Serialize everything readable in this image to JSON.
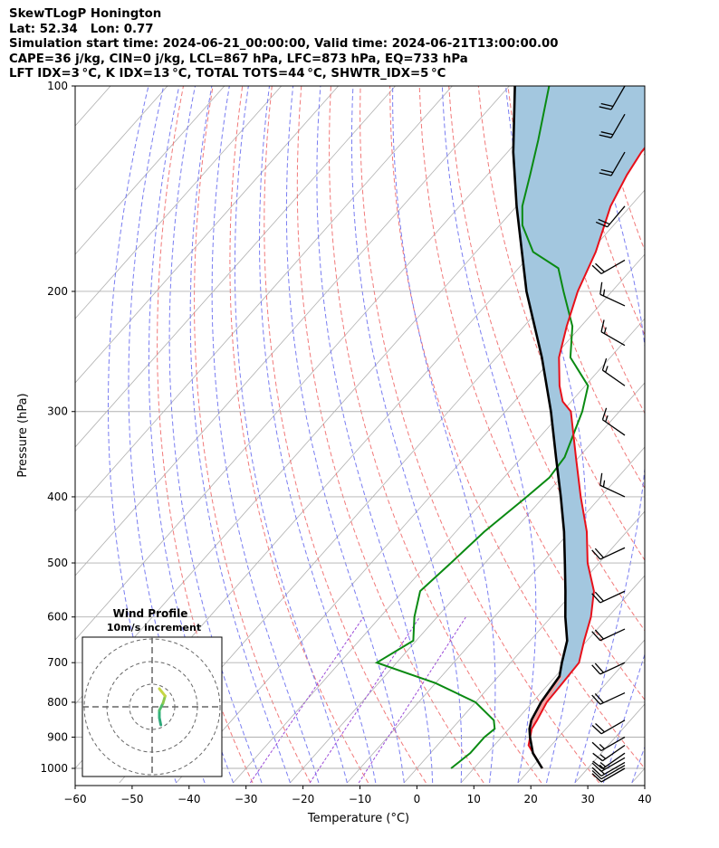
{
  "header": {
    "line1": "SkewTLogP Honington",
    "line2": "Lat: 52.34   Lon: 0.77",
    "line3": "Simulation start time: 2024-06-21_00:00:00, Valid time: 2024-06-21T13:00:00.00",
    "line4": "CAPE=36 j/kg, CIN=0 j/kg, LCL=867 hPa, LFC=873 hPa, EQ=733 hPa",
    "line5": "LFT IDX=3 °C, K IDX=13 °C, TOTAL TOTS=44 °C, SHWTR_IDX=5 °C"
  },
  "chart_data": {
    "type": "line",
    "subtype": "skew-T log-P",
    "xlabel": "Temperature ($^\\circ$C)",
    "ylabel": "Pressure (hPa)",
    "xlim": [
      -60,
      40
    ],
    "ylim": [
      1050,
      100
    ],
    "x_ticks": [
      "−60",
      "−50",
      "−40",
      "−30",
      "−20",
      "−10",
      "0",
      "10",
      "20",
      "30",
      "40"
    ],
    "y_ticks": [
      "100",
      "200",
      "300",
      "400",
      "500",
      "600",
      "700",
      "800",
      "900",
      "1000"
    ],
    "grid": true,
    "colors": {
      "temperature": "#e8101a",
      "dewpoint": "#0a8a12",
      "parcel": "#000000",
      "fill": "#a3c7df",
      "fill_positive": "#f4a3a3",
      "isotherm": "#b0b0b0",
      "dry_adiabat": "#f06a6a",
      "moist_adiabat": "#6a6ff0",
      "mixing_ratio": "#9b4ad8",
      "barb": "#000000"
    },
    "series": [
      {
        "key": "temperature",
        "points": [
          [
            1000,
            22
          ],
          [
            925,
            16
          ],
          [
            875,
            14
          ],
          [
            850,
            13.6
          ],
          [
            800,
            12.5
          ],
          [
            750,
            12.3
          ],
          [
            700,
            12.0
          ],
          [
            650,
            9.5
          ],
          [
            600,
            7.0
          ],
          [
            550,
            3.5
          ],
          [
            500,
            -2.0
          ],
          [
            450,
            -7.0
          ],
          [
            400,
            -13.5
          ],
          [
            350,
            -20.5
          ],
          [
            300,
            -28.5
          ],
          [
            290,
            -31.5
          ],
          [
            275,
            -34.5
          ],
          [
            250,
            -39.0
          ],
          [
            225,
            -42.5
          ],
          [
            200,
            -46.0
          ],
          [
            175,
            -49.0
          ],
          [
            150,
            -53.5
          ],
          [
            135,
            -55.5
          ],
          [
            125,
            -56.5
          ],
          [
            112,
            -57.0
          ],
          [
            100,
            -58.0
          ]
        ]
      },
      {
        "key": "dewpoint",
        "points": [
          [
            1000,
            6.0
          ],
          [
            950,
            7.0
          ],
          [
            900,
            7.0
          ],
          [
            875,
            7.5
          ],
          [
            850,
            6.0
          ],
          [
            800,
            0.0
          ],
          [
            750,
            -10.0
          ],
          [
            700,
            -23.5
          ],
          [
            650,
            -20.5
          ],
          [
            600,
            -24.0
          ],
          [
            550,
            -27.0
          ],
          [
            500,
            -26.0
          ],
          [
            450,
            -25.0
          ],
          [
            400,
            -23.0
          ],
          [
            375,
            -22.0
          ],
          [
            350,
            -22.5
          ],
          [
            300,
            -26.5
          ],
          [
            275,
            -29.5
          ],
          [
            250,
            -37.0
          ],
          [
            225,
            -41.5
          ],
          [
            200,
            -48.5
          ],
          [
            185,
            -53.0
          ],
          [
            175,
            -60.0
          ],
          [
            160,
            -66.0
          ],
          [
            150,
            -69.0
          ],
          [
            135,
            -72.5
          ],
          [
            120,
            -76.5
          ],
          [
            100,
            -83.0
          ]
        ]
      },
      {
        "key": "parcel",
        "points": [
          [
            1000,
            22.0
          ],
          [
            950,
            18.0
          ],
          [
            900,
            15.0
          ],
          [
            875,
            13.6
          ],
          [
            850,
            12.6
          ],
          [
            800,
            11.5
          ],
          [
            733,
            10.7
          ],
          [
            700,
            9.0
          ],
          [
            650,
            6.5
          ],
          [
            600,
            2.5
          ],
          [
            550,
            -1.5
          ],
          [
            500,
            -6.0
          ],
          [
            450,
            -11.0
          ],
          [
            400,
            -17.0
          ],
          [
            350,
            -24.0
          ],
          [
            300,
            -32.0
          ],
          [
            250,
            -42.0
          ],
          [
            200,
            -55.0
          ],
          [
            150,
            -70.0
          ],
          [
            125,
            -79.0
          ],
          [
            100,
            -89.0
          ]
        ]
      }
    ],
    "wind_barbs": [
      {
        "p": 1000,
        "speed_kt": 10,
        "dir": 240
      },
      {
        "p": 990,
        "speed_kt": 10,
        "dir": 240
      },
      {
        "p": 980,
        "speed_kt": 15,
        "dir": 240
      },
      {
        "p": 965,
        "speed_kt": 15,
        "dir": 240
      },
      {
        "p": 950,
        "speed_kt": 15,
        "dir": 235
      },
      {
        "p": 925,
        "speed_kt": 15,
        "dir": 235
      },
      {
        "p": 900,
        "speed_kt": 15,
        "dir": 240
      },
      {
        "p": 850,
        "speed_kt": 20,
        "dir": 240
      },
      {
        "p": 775,
        "speed_kt": 20,
        "dir": 245
      },
      {
        "p": 700,
        "speed_kt": 20,
        "dir": 245
      },
      {
        "p": 625,
        "speed_kt": 20,
        "dir": 245
      },
      {
        "p": 550,
        "speed_kt": 20,
        "dir": 245
      },
      {
        "p": 475,
        "speed_kt": 20,
        "dir": 245
      },
      {
        "p": 400,
        "speed_kt": 15,
        "dir": 295
      },
      {
        "p": 325,
        "speed_kt": 15,
        "dir": 305
      },
      {
        "p": 275,
        "speed_kt": 15,
        "dir": 305
      },
      {
        "p": 240,
        "speed_kt": 15,
        "dir": 300
      },
      {
        "p": 210,
        "speed_kt": 15,
        "dir": 295
      },
      {
        "p": 180,
        "speed_kt": 20,
        "dir": 240
      },
      {
        "p": 150,
        "speed_kt": 20,
        "dir": 220
      },
      {
        "p": 125,
        "speed_kt": 20,
        "dir": 210
      },
      {
        "p": 110,
        "speed_kt": 20,
        "dir": 210
      },
      {
        "p": 100,
        "speed_kt": 20,
        "dir": 210
      }
    ],
    "hodograph": {
      "title_line1": "Wind Profile",
      "title_line2": "10m/s increment",
      "points": [
        [
          1.2,
          -2.5
        ],
        [
          1.0,
          -1.5
        ],
        [
          1.0,
          -0.5
        ],
        [
          1.5,
          0.5
        ],
        [
          1.8,
          1.5
        ],
        [
          1.0,
          2.5
        ]
      ],
      "grid": "dashed-circles"
    }
  }
}
